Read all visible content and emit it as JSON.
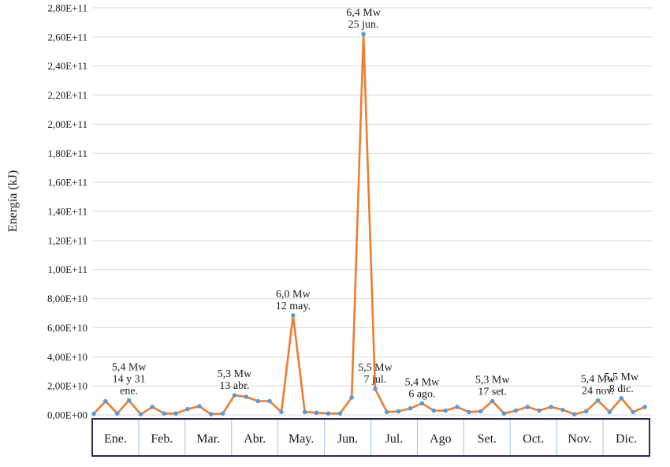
{
  "chart_data": {
    "type": "line",
    "ylabel": "Energía (kJ)",
    "ylim": [
      0,
      280000000000
    ],
    "y_ticks": [
      {
        "value": 0,
        "label": "0,00E+00"
      },
      {
        "value": 20000000000,
        "label": "2,00E+10"
      },
      {
        "value": 40000000000,
        "label": "4,00E+10"
      },
      {
        "value": 60000000000,
        "label": "6,00E+10"
      },
      {
        "value": 80000000000,
        "label": "8,00E+10"
      },
      {
        "value": 100000000000,
        "label": "1,00E+11"
      },
      {
        "value": 120000000000,
        "label": "1,20E+11"
      },
      {
        "value": 140000000000,
        "label": "1,40E+11"
      },
      {
        "value": 160000000000,
        "label": "1,60E+11"
      },
      {
        "value": 180000000000,
        "label": "1,80E+11"
      },
      {
        "value": 200000000000,
        "label": "2,00E+11"
      },
      {
        "value": 220000000000,
        "label": "2,20E+11"
      },
      {
        "value": 240000000000,
        "label": "2,40E+11"
      },
      {
        "value": 260000000000,
        "label": "2,60E+11"
      },
      {
        "value": 280000000000,
        "label": "2,80E+11"
      }
    ],
    "grid": true,
    "legend": "none",
    "colors": {
      "line": "#ed7d31",
      "marker": "#5b9bd5",
      "grid": "#d9d9d9",
      "axis_box": "#2e2a5e",
      "month_divider": "#9dc3e6"
    },
    "months": [
      "Ene.",
      "Feb.",
      "Mar.",
      "Abr.",
      "May.",
      "Jun.",
      "Jul.",
      "Ago",
      "Set.",
      "Oct.",
      "Nov.",
      "Dic."
    ],
    "values": [
      800000000.0,
      9500000000.0,
      1000000000.0,
      10000000000.0,
      500000000.0,
      5500000000.0,
      1000000000.0,
      1000000000.0,
      4000000000.0,
      6000000000.0,
      500000000.0,
      1000000000.0,
      13500000000.0,
      12500000000.0,
      9500000000.0,
      9500000000.0,
      2000000000.0,
      68500000000.0,
      2000000000.0,
      1500000000.0,
      1000000000.0,
      1000000000.0,
      12000000000.0,
      262000000000.0,
      18000000000.0,
      2000000000.0,
      2500000000.0,
      4500000000.0,
      8000000000.0,
      3000000000.0,
      3000000000.0,
      5500000000.0,
      2000000000.0,
      2500000000.0,
      9500000000.0,
      1000000000.0,
      3000000000.0,
      5500000000.0,
      3000000000.0,
      5500000000.0,
      3500000000.0,
      500000000.0,
      2500000000.0,
      10000000000.0,
      2000000000.0,
      11500000000.0,
      2000000000.0,
      5500000000.0
    ],
    "annotations": [
      {
        "point": 3,
        "lines": [
          "5,4 Mw",
          "14  y 31",
          "ene."
        ]
      },
      {
        "point": 12,
        "lines": [
          "5,3 Mw",
          "13 abr."
        ]
      },
      {
        "point": 17,
        "lines": [
          "6,0 Mw",
          "12 may."
        ]
      },
      {
        "point": 23,
        "lines": [
          "6,4 Mw",
          "25 jun."
        ]
      },
      {
        "point": 24,
        "lines": [
          "5,5 Mw",
          "7 jul."
        ]
      },
      {
        "point": 28,
        "lines": [
          "5,4 Mw",
          "6 ago."
        ]
      },
      {
        "point": 34,
        "lines": [
          "5,3 Mw",
          "17 set."
        ]
      },
      {
        "point": 43,
        "lines": [
          "5,4 Mw",
          "24 nov."
        ]
      },
      {
        "point": 45,
        "lines": [
          "5,5 Mw",
          "8 dic."
        ]
      }
    ]
  }
}
